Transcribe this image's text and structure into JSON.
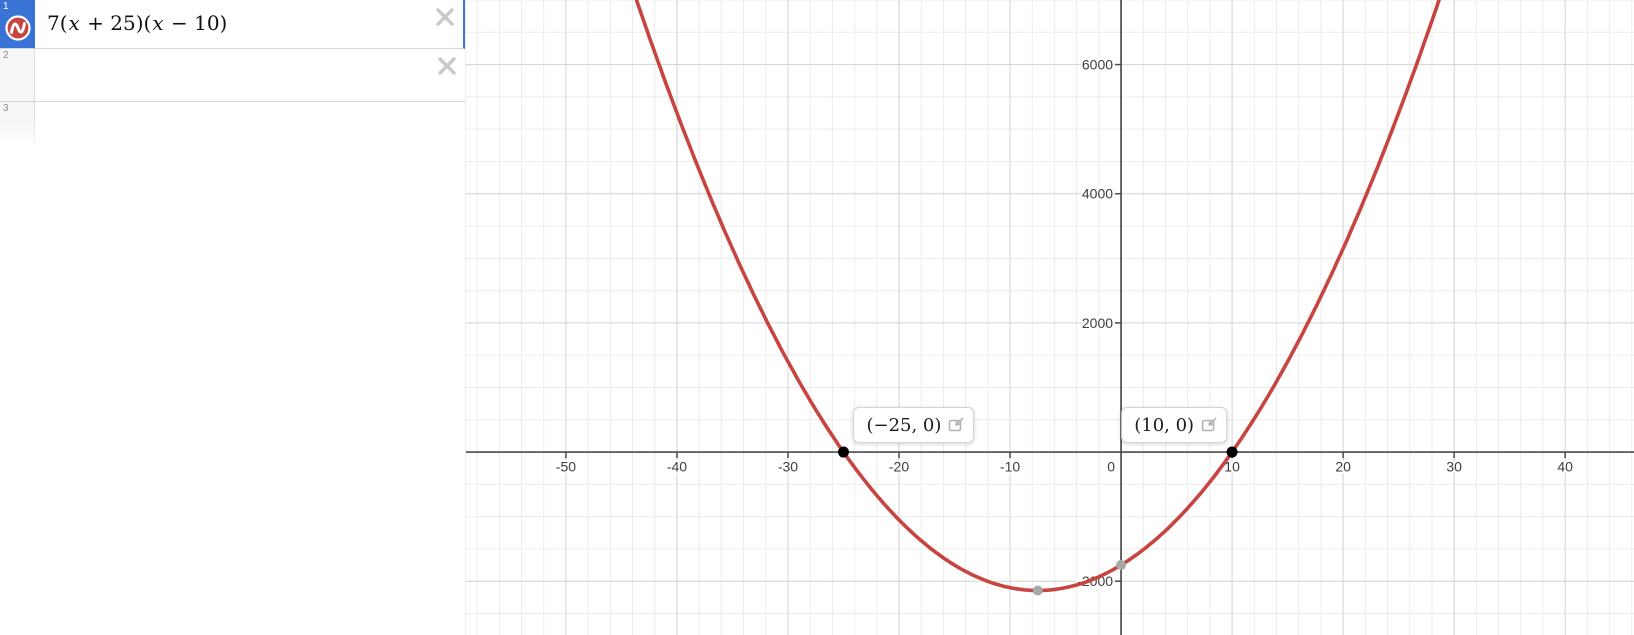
{
  "expression_panel": {
    "rows": [
      {
        "index": "1",
        "latex": "7(x + 25)(x − 10)",
        "selected": true,
        "icon": "red-wave-circle",
        "has_close": true
      },
      {
        "index": "2",
        "latex": "",
        "selected": false,
        "has_close": true
      },
      {
        "index": "3",
        "latex": "",
        "selected": false,
        "has_close": false
      }
    ],
    "colors": {
      "selected_strip": "#3a73d6",
      "icon_red": "#c74440",
      "close_gray": "#c9c9c9",
      "row_number_gray": "#8a8a8a"
    }
  },
  "chart_data": {
    "type": "line",
    "title": "",
    "function": {
      "expression": "y = 7(x + 25)(x − 10)",
      "a": 7,
      "roots": [
        -25,
        10
      ],
      "vertex": [
        -7.5,
        -2143.75
      ],
      "y_intercept": [
        0,
        -1750
      ]
    },
    "x_range": [
      -59.0,
      46.2
    ],
    "y_range": [
      -2833,
      7000
    ],
    "x_major_step": 10,
    "x_minor_step": 2,
    "y_major_step": 2000,
    "y_minor_step": 500,
    "x_tick_labels": [
      "-50",
      "-40",
      "-30",
      "-20",
      "-10",
      "0",
      "10",
      "20",
      "30",
      "40"
    ],
    "y_tick_labels": [
      "6000",
      "4000",
      "2000",
      "-2000"
    ],
    "grid": true,
    "legend": "none",
    "curve_color": "#c74440",
    "points": [
      {
        "x": -25,
        "y": 0,
        "style": "black",
        "label": "(−25, 0)",
        "label_anchor": "top-right"
      },
      {
        "x": 10,
        "y": 0,
        "style": "black",
        "label": "(10, 0)",
        "label_anchor": "top-left"
      },
      {
        "x": -7.5,
        "y": -2143.75,
        "style": "gray"
      },
      {
        "x": 0,
        "y": -1750,
        "style": "gray"
      }
    ],
    "colors": {
      "axis": "#4a4a4a",
      "major_grid": "#d2d2d2",
      "minor_grid": "#ececec",
      "tick_label": "#3d3d3d",
      "black_point": "#000000",
      "gray_point": "#a8a8a8"
    }
  }
}
